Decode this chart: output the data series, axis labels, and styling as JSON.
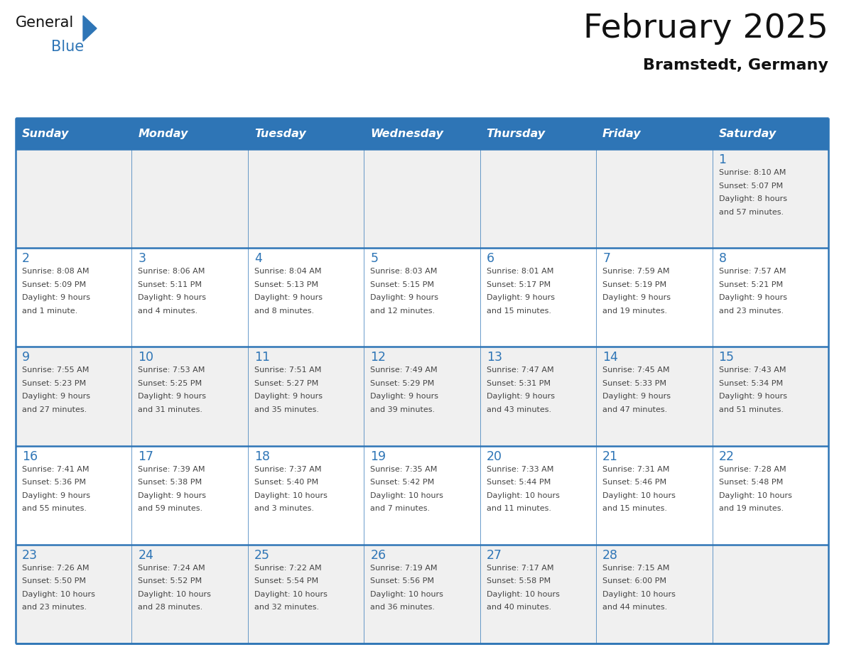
{
  "title": "February 2025",
  "subtitle": "Bramstedt, Germany",
  "header_bg": "#2e75b6",
  "header_text_color": "#ffffff",
  "day_number_color": "#2e75b6",
  "line_color": "#2e75b6",
  "days_of_week": [
    "Sunday",
    "Monday",
    "Tuesday",
    "Wednesday",
    "Thursday",
    "Friday",
    "Saturday"
  ],
  "calendar": [
    [
      null,
      null,
      null,
      null,
      null,
      null,
      {
        "day": "1",
        "sunrise": "8:10 AM",
        "sunset": "5:07 PM",
        "daylight_h": "8 hours",
        "daylight_m": "and 57 minutes."
      }
    ],
    [
      {
        "day": "2",
        "sunrise": "8:08 AM",
        "sunset": "5:09 PM",
        "daylight_h": "9 hours",
        "daylight_m": "and 1 minute."
      },
      {
        "day": "3",
        "sunrise": "8:06 AM",
        "sunset": "5:11 PM",
        "daylight_h": "9 hours",
        "daylight_m": "and 4 minutes."
      },
      {
        "day": "4",
        "sunrise": "8:04 AM",
        "sunset": "5:13 PM",
        "daylight_h": "9 hours",
        "daylight_m": "and 8 minutes."
      },
      {
        "day": "5",
        "sunrise": "8:03 AM",
        "sunset": "5:15 PM",
        "daylight_h": "9 hours",
        "daylight_m": "and 12 minutes."
      },
      {
        "day": "6",
        "sunrise": "8:01 AM",
        "sunset": "5:17 PM",
        "daylight_h": "9 hours",
        "daylight_m": "and 15 minutes."
      },
      {
        "day": "7",
        "sunrise": "7:59 AM",
        "sunset": "5:19 PM",
        "daylight_h": "9 hours",
        "daylight_m": "and 19 minutes."
      },
      {
        "day": "8",
        "sunrise": "7:57 AM",
        "sunset": "5:21 PM",
        "daylight_h": "9 hours",
        "daylight_m": "and 23 minutes."
      }
    ],
    [
      {
        "day": "9",
        "sunrise": "7:55 AM",
        "sunset": "5:23 PM",
        "daylight_h": "9 hours",
        "daylight_m": "and 27 minutes."
      },
      {
        "day": "10",
        "sunrise": "7:53 AM",
        "sunset": "5:25 PM",
        "daylight_h": "9 hours",
        "daylight_m": "and 31 minutes."
      },
      {
        "day": "11",
        "sunrise": "7:51 AM",
        "sunset": "5:27 PM",
        "daylight_h": "9 hours",
        "daylight_m": "and 35 minutes."
      },
      {
        "day": "12",
        "sunrise": "7:49 AM",
        "sunset": "5:29 PM",
        "daylight_h": "9 hours",
        "daylight_m": "and 39 minutes."
      },
      {
        "day": "13",
        "sunrise": "7:47 AM",
        "sunset": "5:31 PM",
        "daylight_h": "9 hours",
        "daylight_m": "and 43 minutes."
      },
      {
        "day": "14",
        "sunrise": "7:45 AM",
        "sunset": "5:33 PM",
        "daylight_h": "9 hours",
        "daylight_m": "and 47 minutes."
      },
      {
        "day": "15",
        "sunrise": "7:43 AM",
        "sunset": "5:34 PM",
        "daylight_h": "9 hours",
        "daylight_m": "and 51 minutes."
      }
    ],
    [
      {
        "day": "16",
        "sunrise": "7:41 AM",
        "sunset": "5:36 PM",
        "daylight_h": "9 hours",
        "daylight_m": "and 55 minutes."
      },
      {
        "day": "17",
        "sunrise": "7:39 AM",
        "sunset": "5:38 PM",
        "daylight_h": "9 hours",
        "daylight_m": "and 59 minutes."
      },
      {
        "day": "18",
        "sunrise": "7:37 AM",
        "sunset": "5:40 PM",
        "daylight_h": "10 hours",
        "daylight_m": "and 3 minutes."
      },
      {
        "day": "19",
        "sunrise": "7:35 AM",
        "sunset": "5:42 PM",
        "daylight_h": "10 hours",
        "daylight_m": "and 7 minutes."
      },
      {
        "day": "20",
        "sunrise": "7:33 AM",
        "sunset": "5:44 PM",
        "daylight_h": "10 hours",
        "daylight_m": "and 11 minutes."
      },
      {
        "day": "21",
        "sunrise": "7:31 AM",
        "sunset": "5:46 PM",
        "daylight_h": "10 hours",
        "daylight_m": "and 15 minutes."
      },
      {
        "day": "22",
        "sunrise": "7:28 AM",
        "sunset": "5:48 PM",
        "daylight_h": "10 hours",
        "daylight_m": "and 19 minutes."
      }
    ],
    [
      {
        "day": "23",
        "sunrise": "7:26 AM",
        "sunset": "5:50 PM",
        "daylight_h": "10 hours",
        "daylight_m": "and 23 minutes."
      },
      {
        "day": "24",
        "sunrise": "7:24 AM",
        "sunset": "5:52 PM",
        "daylight_h": "10 hours",
        "daylight_m": "and 28 minutes."
      },
      {
        "day": "25",
        "sunrise": "7:22 AM",
        "sunset": "5:54 PM",
        "daylight_h": "10 hours",
        "daylight_m": "and 32 minutes."
      },
      {
        "day": "26",
        "sunrise": "7:19 AM",
        "sunset": "5:56 PM",
        "daylight_h": "10 hours",
        "daylight_m": "and 36 minutes."
      },
      {
        "day": "27",
        "sunrise": "7:17 AM",
        "sunset": "5:58 PM",
        "daylight_h": "10 hours",
        "daylight_m": "and 40 minutes."
      },
      {
        "day": "28",
        "sunrise": "7:15 AM",
        "sunset": "6:00 PM",
        "daylight_h": "10 hours",
        "daylight_m": "and 44 minutes."
      },
      null
    ]
  ]
}
